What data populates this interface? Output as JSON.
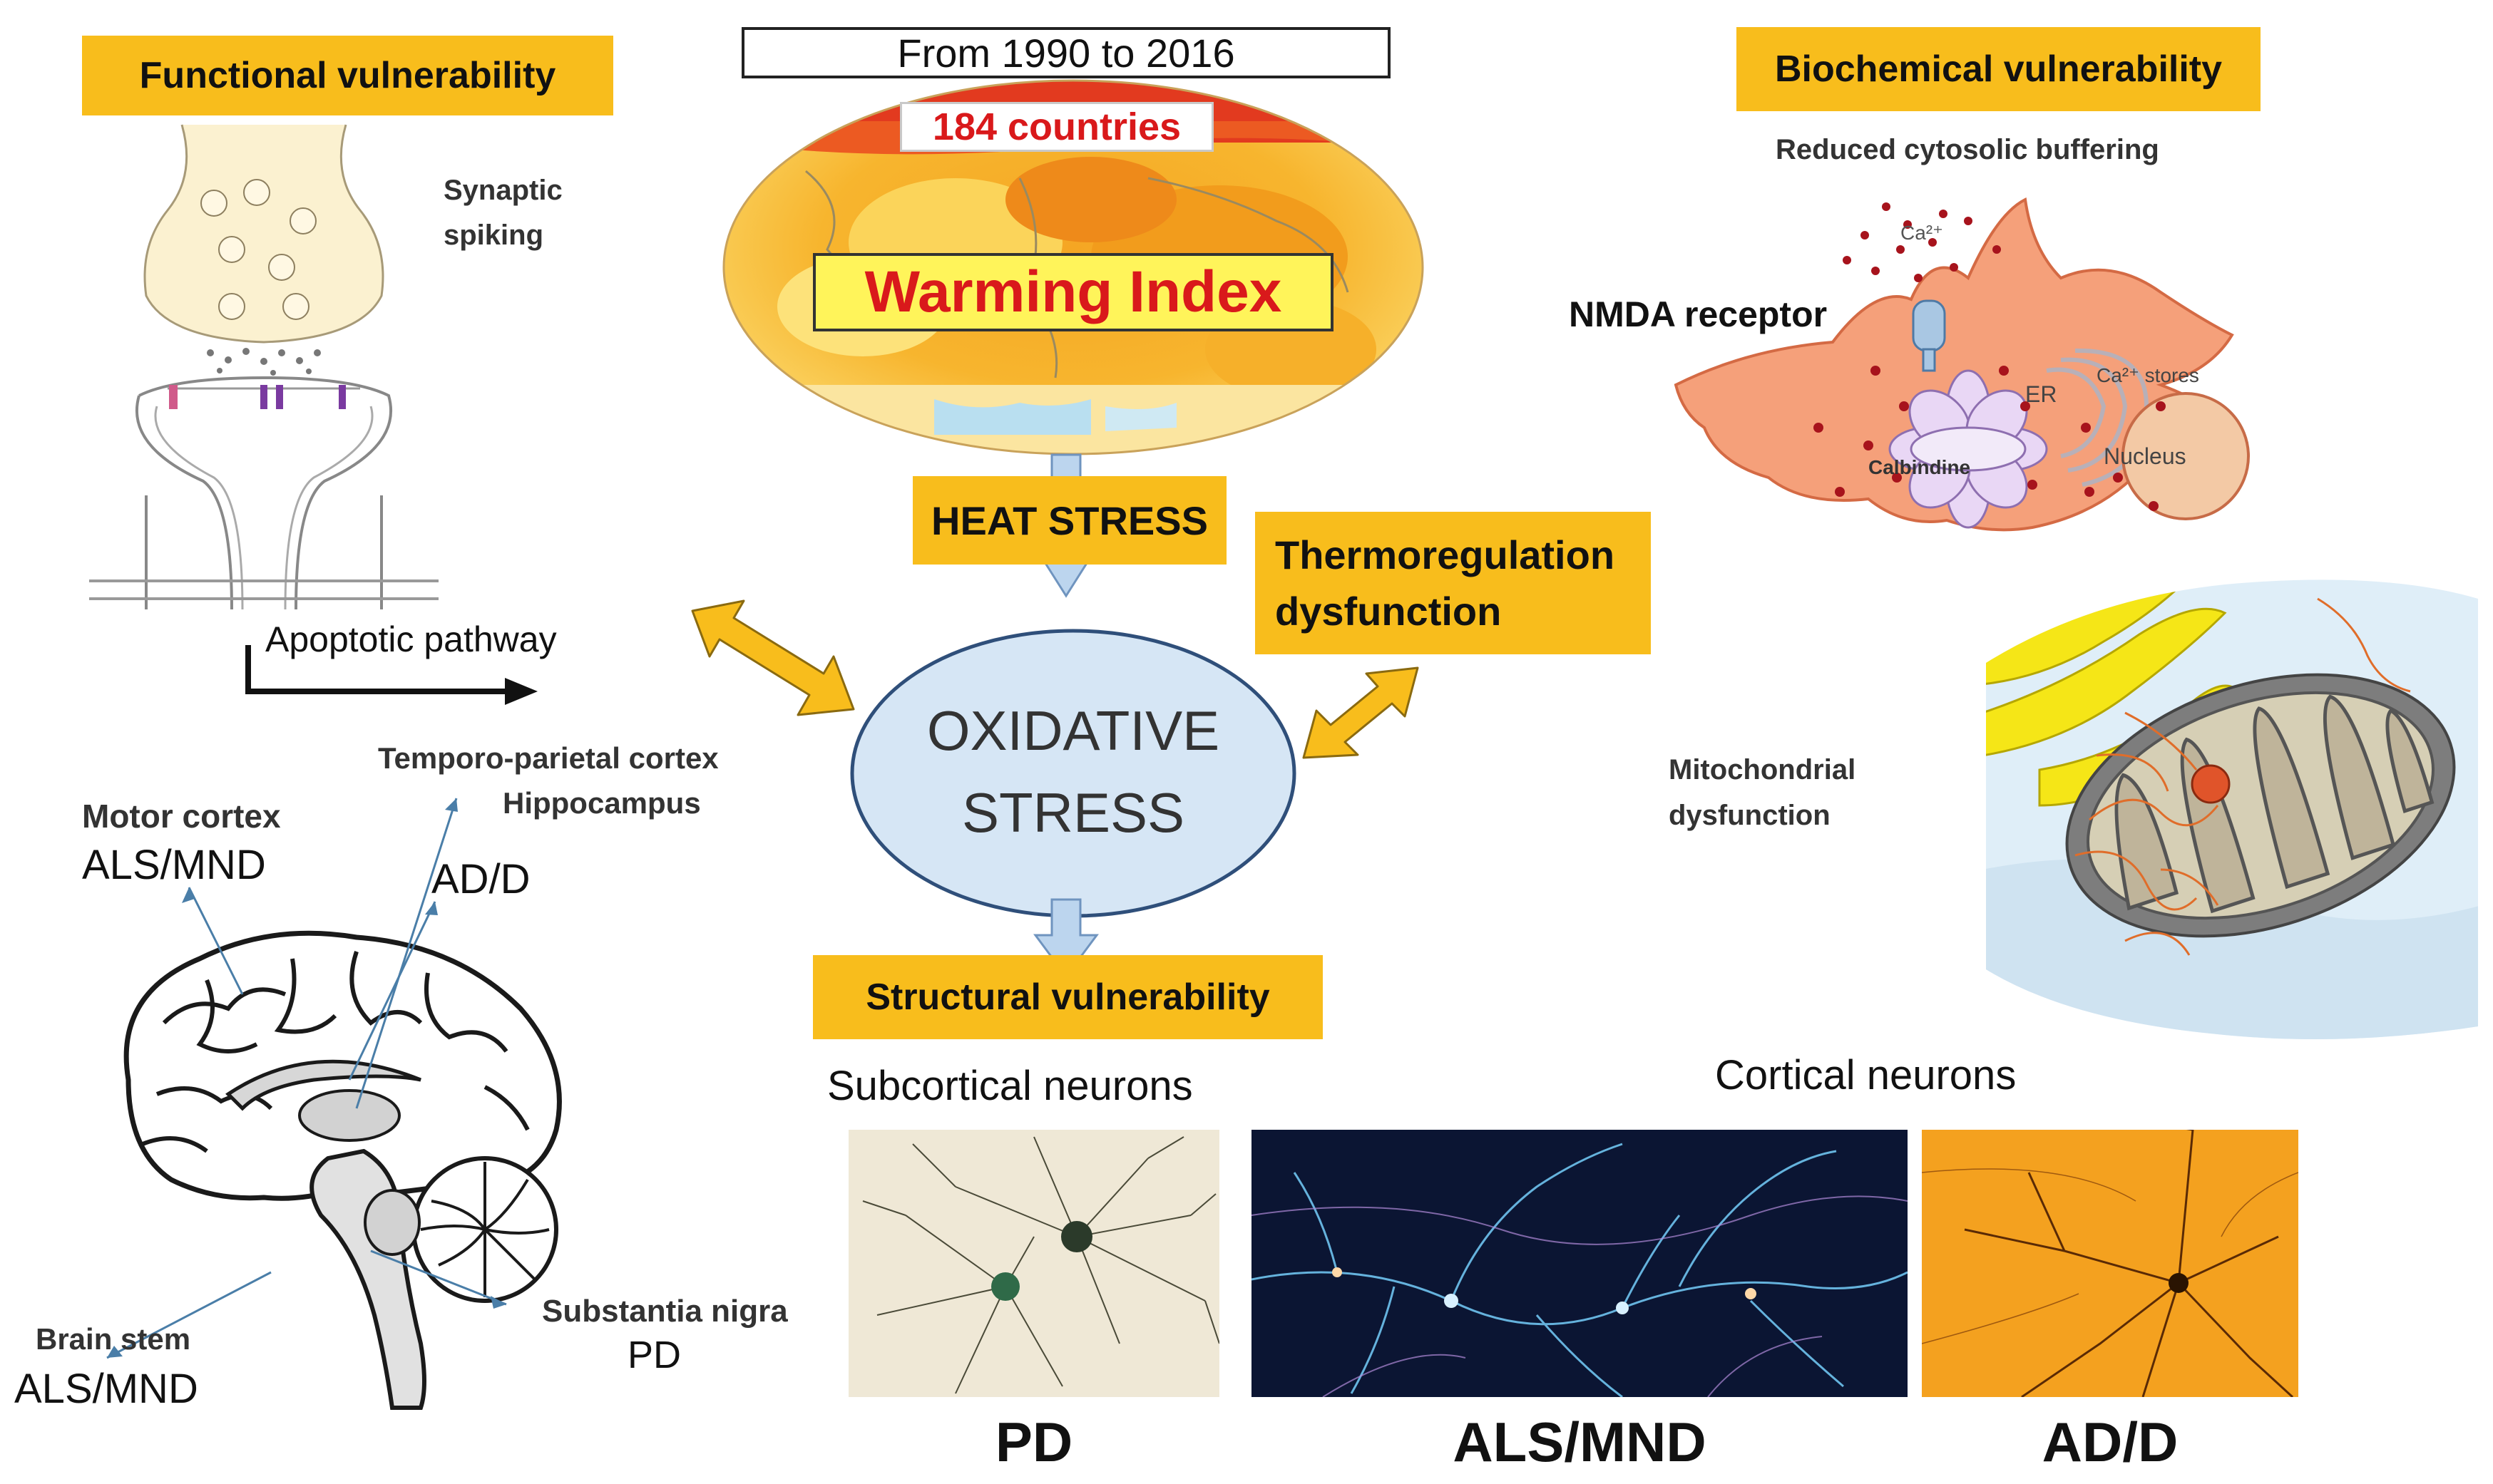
{
  "header": {
    "period": "From 1990 to 2016"
  },
  "globe": {
    "countries": "184 countries",
    "index": "Warming Index"
  },
  "flow": {
    "heat_stress": "HEAT STRESS",
    "oxidative_line1": "OXIDATIVE",
    "oxidative_line2": "STRESS",
    "thermo_line1": "Thermoregulation",
    "thermo_line2": "dysfunction"
  },
  "functional": {
    "title": "Functional vulnerability",
    "synaptic_line1": "Synaptic",
    "synaptic_line2": "spiking",
    "apoptotic": "Apoptotic pathway"
  },
  "biochemical": {
    "title": "Biochemical vulnerability",
    "buffering": "Reduced cytosolic buffering",
    "nmda": "NMDA receptor",
    "ca_ion": "Ca²⁺",
    "er": "ER",
    "ca_stores": "Ca²⁺ stores",
    "calbindine": "Calbindine",
    "nucleus": "Nucleus",
    "mito_line1": "Mitochondrial",
    "mito_line2": "dysfunction"
  },
  "brain": {
    "temporo": "Temporo-parietal cortex",
    "hippocampus": "Hippocampus",
    "motor_cortex": "Motor cortex",
    "motor_disease": "ALS/MND",
    "ad_label": "AD/D",
    "brain_stem": "Brain stem",
    "stem_disease": "ALS/MND",
    "substantia": "Substantia nigra",
    "substantia_disease": "PD"
  },
  "structural": {
    "title": "Structural vulnerability",
    "subcortical": "Subcortical neurons",
    "cortical": "Cortical neurons",
    "pd": "PD",
    "als": "ALS/MND",
    "ad": "AD/D"
  },
  "colors": {
    "label_bg": "#f8bd1c",
    "arrow_blue": "#bcd5ee",
    "ellipse_fill": "#d6e6f5",
    "ellipse_stroke": "#2f4f7a",
    "warming_red": "#d9191b"
  }
}
